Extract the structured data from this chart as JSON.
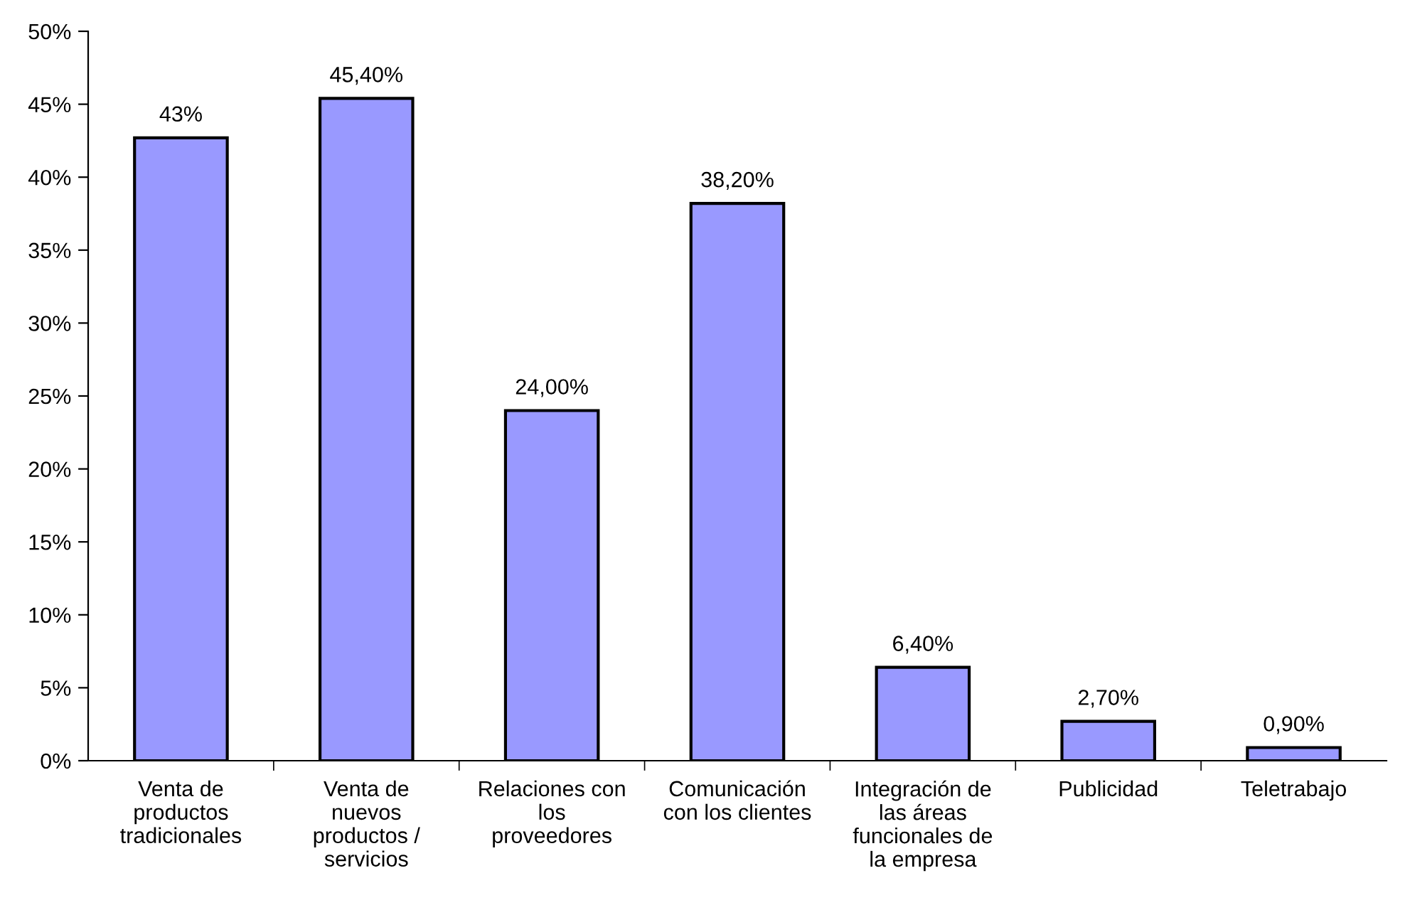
{
  "chart_data": {
    "type": "bar",
    "categories": [
      "Venta de\nproductos\ntradicionales",
      "Venta de\nnuevos\nproductos /\nservicios",
      "Relaciones con\nlos\nproveedores",
      "Comunicación\ncon los clientes",
      "Integración de\nlas áreas\nfuncionales de\nla empresa",
      "Publicidad",
      "Teletrabajo"
    ],
    "values": [
      42.7,
      45.4,
      24.0,
      38.2,
      6.4,
      2.7,
      0.9
    ],
    "value_labels": [
      "43%",
      "45,40%",
      "24,00%",
      "38,20%",
      "6,40%",
      "2,70%",
      "0,90%"
    ],
    "color": "#9999ff",
    "ylim": [
      0,
      50
    ],
    "yticks": [
      {
        "value": 0,
        "label": "0%"
      },
      {
        "value": 5,
        "label": "5%"
      },
      {
        "value": 10,
        "label": "10%"
      },
      {
        "value": 15,
        "label": "15%"
      },
      {
        "value": 20,
        "label": "20%"
      },
      {
        "value": 25,
        "label": "25%"
      },
      {
        "value": 30,
        "label": "30%"
      },
      {
        "value": 35,
        "label": "35%"
      },
      {
        "value": 40,
        "label": "40%"
      },
      {
        "value": 45,
        "label": "45%"
      },
      {
        "value": 50,
        "label": "50%"
      }
    ],
    "grid": false,
    "legend": false
  }
}
